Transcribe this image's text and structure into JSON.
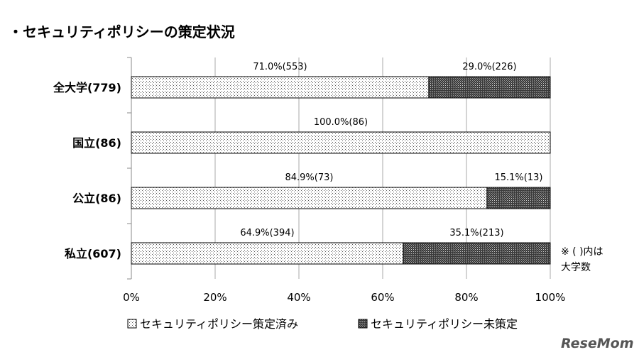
{
  "chart_data": {
    "type": "bar",
    "orientation": "horizontal",
    "stacked": true,
    "title": "・セキュリティポリシーの策定状況",
    "categories": [
      "全大学(779)",
      "国立(86)",
      "公立(86)",
      "私立(607)"
    ],
    "series": [
      {
        "name": "セキュリティポリシー策定済み",
        "values": [
          71.0,
          100.0,
          84.9,
          64.9
        ],
        "labels": [
          "71.0%(553)",
          "100.0%(86)",
          "84.9%(73)",
          "64.9%(394)"
        ],
        "pattern": "light-dots"
      },
      {
        "name": "セキュリティポリシー未策定",
        "values": [
          29.0,
          0,
          15.1,
          35.1
        ],
        "labels": [
          "29.0%(226)",
          "",
          "15.1%(13)",
          "35.1%(213)"
        ],
        "pattern": "dense-crosshatch"
      }
    ],
    "xlim": [
      0,
      100
    ],
    "xticks": [
      "0%",
      "20%",
      "40%",
      "60%",
      "80%",
      "100%"
    ],
    "grid": true,
    "legend": "bottom",
    "note_lines": [
      "※ ( )内は",
      "大学数"
    ]
  },
  "watermark": "ReseMom"
}
